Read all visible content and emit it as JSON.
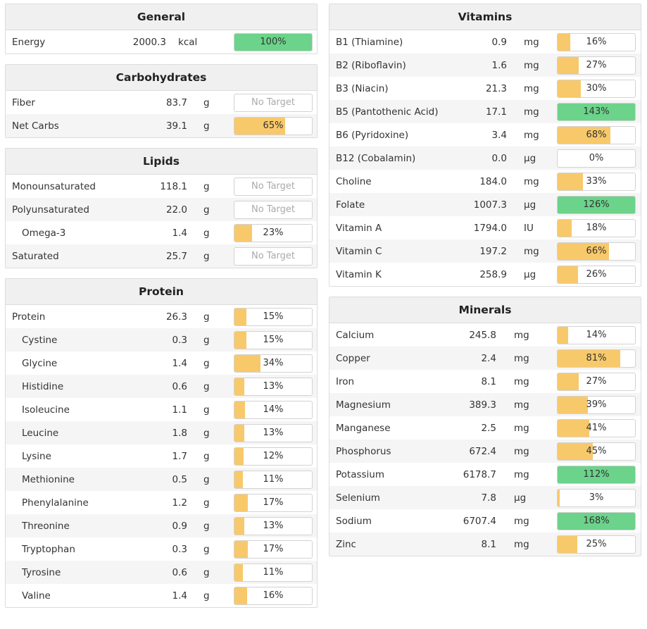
{
  "colors": {
    "green": "#6bd38a",
    "yellow": "#f8c96a",
    "header_bg": "#f0f0f0",
    "border": "#dcdcdc"
  },
  "left_panels": [
    {
      "key": "general",
      "title": "General",
      "rows": [
        {
          "name": "Energy",
          "amount": "2000.3",
          "unit": "kcal",
          "pct": 100,
          "label": "100%"
        }
      ]
    },
    {
      "key": "carbs",
      "title": "Carbohydrates",
      "rows": [
        {
          "name": "Fiber",
          "amount": "83.7",
          "unit": "g",
          "pct": null,
          "label": "No Target"
        },
        {
          "name": "Net Carbs",
          "amount": "39.1",
          "unit": "g",
          "pct": 65,
          "label": "65%"
        }
      ]
    },
    {
      "key": "lipids",
      "title": "Lipids",
      "rows": [
        {
          "name": "Monounsaturated",
          "amount": "118.1",
          "unit": "g",
          "pct": null,
          "label": "No Target"
        },
        {
          "name": "Polyunsaturated",
          "amount": "22.0",
          "unit": "g",
          "pct": null,
          "label": "No Target"
        },
        {
          "name": "Omega-3",
          "amount": "1.4",
          "unit": "g",
          "pct": 23,
          "label": "23%",
          "sub": true
        },
        {
          "name": "Saturated",
          "amount": "25.7",
          "unit": "g",
          "pct": null,
          "label": "No Target"
        }
      ]
    },
    {
      "key": "protein",
      "title": "Protein",
      "rows": [
        {
          "name": "Protein",
          "amount": "26.3",
          "unit": "g",
          "pct": 15,
          "label": "15%"
        },
        {
          "name": "Cystine",
          "amount": "0.3",
          "unit": "g",
          "pct": 15,
          "label": "15%",
          "sub": true
        },
        {
          "name": "Glycine",
          "amount": "1.4",
          "unit": "g",
          "pct": 34,
          "label": "34%",
          "sub": true
        },
        {
          "name": "Histidine",
          "amount": "0.6",
          "unit": "g",
          "pct": 13,
          "label": "13%",
          "sub": true
        },
        {
          "name": "Isoleucine",
          "amount": "1.1",
          "unit": "g",
          "pct": 14,
          "label": "14%",
          "sub": true
        },
        {
          "name": "Leucine",
          "amount": "1.8",
          "unit": "g",
          "pct": 13,
          "label": "13%",
          "sub": true
        },
        {
          "name": "Lysine",
          "amount": "1.7",
          "unit": "g",
          "pct": 12,
          "label": "12%",
          "sub": true
        },
        {
          "name": "Methionine",
          "amount": "0.5",
          "unit": "g",
          "pct": 11,
          "label": "11%",
          "sub": true
        },
        {
          "name": "Phenylalanine",
          "amount": "1.2",
          "unit": "g",
          "pct": 17,
          "label": "17%",
          "sub": true
        },
        {
          "name": "Threonine",
          "amount": "0.9",
          "unit": "g",
          "pct": 13,
          "label": "13%",
          "sub": true
        },
        {
          "name": "Tryptophan",
          "amount": "0.3",
          "unit": "g",
          "pct": 17,
          "label": "17%",
          "sub": true
        },
        {
          "name": "Tyrosine",
          "amount": "0.6",
          "unit": "g",
          "pct": 11,
          "label": "11%",
          "sub": true
        },
        {
          "name": "Valine",
          "amount": "1.4",
          "unit": "g",
          "pct": 16,
          "label": "16%",
          "sub": true
        }
      ]
    }
  ],
  "right_panels": [
    {
      "key": "vitamins",
      "title": "Vitamins",
      "rows": [
        {
          "name": "B1 (Thiamine)",
          "amount": "0.9",
          "unit": "mg",
          "pct": 16,
          "label": "16%"
        },
        {
          "name": "B2 (Riboflavin)",
          "amount": "1.6",
          "unit": "mg",
          "pct": 27,
          "label": "27%"
        },
        {
          "name": "B3 (Niacin)",
          "amount": "21.3",
          "unit": "mg",
          "pct": 30,
          "label": "30%"
        },
        {
          "name": "B5 (Pantothenic Acid)",
          "amount": "17.1",
          "unit": "mg",
          "pct": 143,
          "label": "143%"
        },
        {
          "name": "B6 (Pyridoxine)",
          "amount": "3.4",
          "unit": "mg",
          "pct": 68,
          "label": "68%"
        },
        {
          "name": "B12 (Cobalamin)",
          "amount": "0.0",
          "unit": "µg",
          "pct": 0,
          "label": "0%"
        },
        {
          "name": "Choline",
          "amount": "184.0",
          "unit": "mg",
          "pct": 33,
          "label": "33%"
        },
        {
          "name": "Folate",
          "amount": "1007.3",
          "unit": "µg",
          "pct": 126,
          "label": "126%"
        },
        {
          "name": "Vitamin A",
          "amount": "1794.0",
          "unit": "IU",
          "pct": 18,
          "label": "18%"
        },
        {
          "name": "Vitamin C",
          "amount": "197.2",
          "unit": "mg",
          "pct": 66,
          "label": "66%"
        },
        {
          "name": "Vitamin K",
          "amount": "258.9",
          "unit": "µg",
          "pct": 26,
          "label": "26%"
        }
      ]
    },
    {
      "key": "minerals",
      "title": "Minerals",
      "rows": [
        {
          "name": "Calcium",
          "amount": "245.8",
          "unit": "mg",
          "pct": 14,
          "label": "14%"
        },
        {
          "name": "Copper",
          "amount": "2.4",
          "unit": "mg",
          "pct": 81,
          "label": "81%"
        },
        {
          "name": "Iron",
          "amount": "8.1",
          "unit": "mg",
          "pct": 27,
          "label": "27%"
        },
        {
          "name": "Magnesium",
          "amount": "389.3",
          "unit": "mg",
          "pct": 39,
          "label": "39%"
        },
        {
          "name": "Manganese",
          "amount": "2.5",
          "unit": "mg",
          "pct": 41,
          "label": "41%"
        },
        {
          "name": "Phosphorus",
          "amount": "672.4",
          "unit": "mg",
          "pct": 45,
          "label": "45%"
        },
        {
          "name": "Potassium",
          "amount": "6178.7",
          "unit": "mg",
          "pct": 112,
          "label": "112%"
        },
        {
          "name": "Selenium",
          "amount": "7.8",
          "unit": "µg",
          "pct": 3,
          "label": "3%"
        },
        {
          "name": "Sodium",
          "amount": "6707.4",
          "unit": "mg",
          "pct": 168,
          "label": "168%"
        },
        {
          "name": "Zinc",
          "amount": "8.1",
          "unit": "mg",
          "pct": 25,
          "label": "25%"
        }
      ]
    }
  ]
}
